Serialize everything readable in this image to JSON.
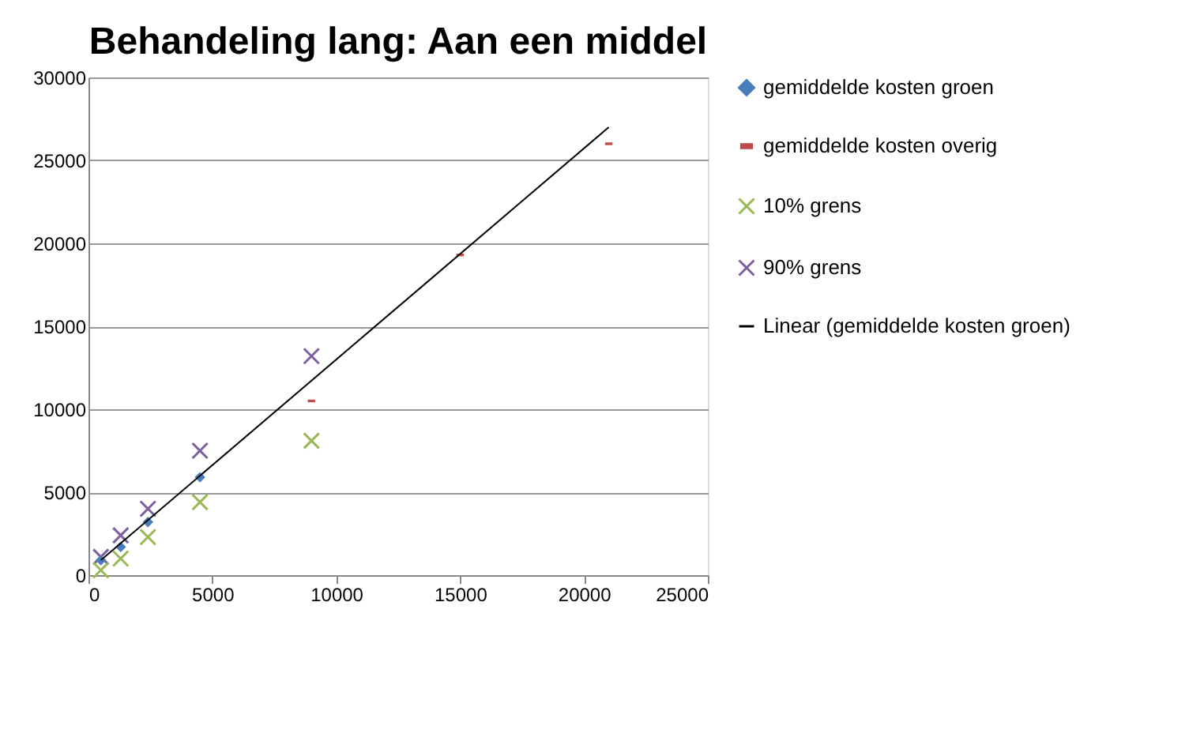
{
  "chart_data": {
    "type": "scatter",
    "title": "Behandeling lang: Aan een middel",
    "series": [
      {
        "name": "gemiddelde kosten groen",
        "color": "#4a7ebb",
        "marker": "diamond",
        "x": [
          500,
          1300,
          2400,
          4500
        ],
        "values": [
          900,
          1700,
          3200,
          5900
        ]
      },
      {
        "name": "gemiddelde kosten overig",
        "color": "#be4b48",
        "marker": "square",
        "x": [
          9000,
          15000,
          21000
        ],
        "values": [
          10500,
          19300,
          26000
        ]
      },
      {
        "name": "10% grens",
        "color": "#98b954",
        "marker": "cross",
        "x": [
          500,
          1300,
          2400,
          4500,
          9000
        ],
        "values": [
          300,
          1000,
          2300,
          4400,
          8100
        ]
      },
      {
        "name": "90% grens",
        "color": "#7d60a0",
        "marker": "cross",
        "x": [
          500,
          1300,
          2400,
          4500,
          9000
        ],
        "values": [
          1100,
          2400,
          4000,
          7500,
          13200
        ]
      },
      {
        "name": "Linear (gemiddelde kosten groen)",
        "type": "line",
        "color": "#000000",
        "marker": "none",
        "line_style": "solid",
        "x": [
          500,
          21000
        ],
        "values": [
          900,
          27000
        ]
      }
    ],
    "xlim": [
      0,
      25000
    ],
    "ylim": [
      0,
      30000
    ],
    "xticks": [
      0,
      5000,
      10000,
      15000,
      20000,
      25000
    ],
    "yticks": [
      0,
      5000,
      10000,
      15000,
      20000,
      25000,
      30000
    ],
    "grid": "y",
    "legend": "right"
  }
}
